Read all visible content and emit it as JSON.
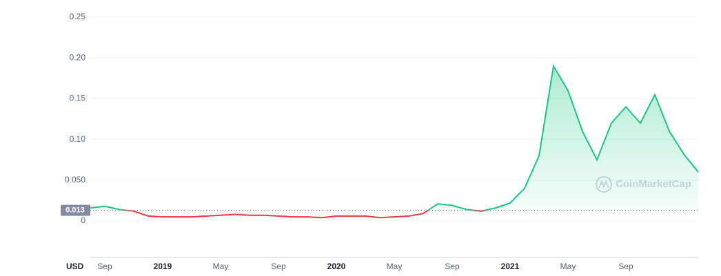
{
  "chart_data": {
    "type": "line",
    "axis_label": "USD",
    "reference_value": 0.013,
    "reference_label": "0.013",
    "watermark": "CoinMarketCap",
    "up_color": "#16c784",
    "down_color": "#ea3943",
    "x": [
      "2018-08",
      "2018-09",
      "2018-10",
      "2018-11",
      "2018-12",
      "2019-01",
      "2019-02",
      "2019-03",
      "2019-04",
      "2019-05",
      "2019-06",
      "2019-07",
      "2019-08",
      "2019-09",
      "2019-10",
      "2019-11",
      "2019-12",
      "2020-01",
      "2020-02",
      "2020-03",
      "2020-04",
      "2020-05",
      "2020-06",
      "2020-07",
      "2020-08",
      "2020-09",
      "2020-10",
      "2020-11",
      "2020-12",
      "2021-01",
      "2021-02",
      "2021-03",
      "2021-04",
      "2021-05",
      "2021-06",
      "2021-07",
      "2021-08",
      "2021-09",
      "2021-10",
      "2021-11",
      "2021-12",
      "2022-01",
      "2022-02"
    ],
    "values": [
      0.016,
      0.018,
      0.014,
      0.012,
      0.006,
      0.005,
      0.005,
      0.005,
      0.006,
      0.007,
      0.008,
      0.007,
      0.007,
      0.006,
      0.005,
      0.005,
      0.004,
      0.006,
      0.006,
      0.006,
      0.004,
      0.005,
      0.006,
      0.009,
      0.021,
      0.019,
      0.014,
      0.012,
      0.016,
      0.022,
      0.04,
      0.08,
      0.19,
      0.16,
      0.11,
      0.075,
      0.12,
      0.14,
      0.12,
      0.155,
      0.11,
      0.082,
      0.06
    ],
    "xlim": [
      "2018-08",
      "2022-02"
    ],
    "xticks": [
      {
        "value": "2018-09",
        "label": "Sep"
      },
      {
        "value": "2019-01",
        "label": "2019"
      },
      {
        "value": "2019-05",
        "label": "May"
      },
      {
        "value": "2019-09",
        "label": "Sep"
      },
      {
        "value": "2020-01",
        "label": "2020"
      },
      {
        "value": "2020-05",
        "label": "May"
      },
      {
        "value": "2020-09",
        "label": "Sep"
      },
      {
        "value": "2021-01",
        "label": "2021"
      },
      {
        "value": "2021-05",
        "label": "May"
      },
      {
        "value": "2021-09",
        "label": "Sep"
      }
    ],
    "ylim": [
      0,
      0.25
    ],
    "yticks": [
      0,
      {
        "value": 0.05,
        "label": "0.050"
      },
      {
        "value": 0.1,
        "label": "0.10"
      },
      0.15,
      {
        "value": 0.2,
        "label": "0.20"
      },
      0.25
    ],
    "grid": true
  }
}
